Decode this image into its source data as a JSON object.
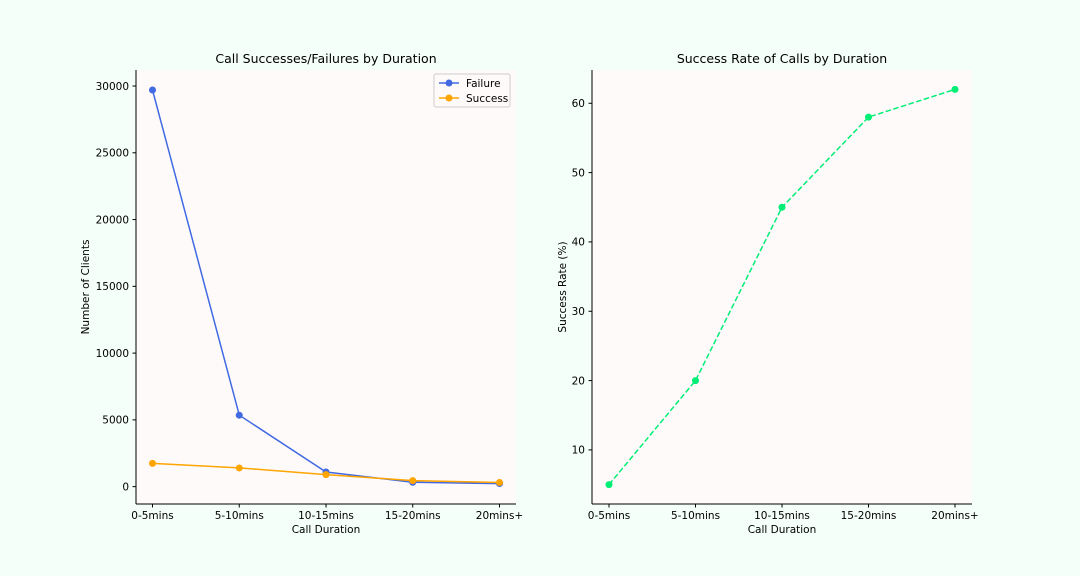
{
  "page": {
    "background": "#f5fff9"
  },
  "chart_data": [
    {
      "type": "line",
      "title": "Call Successes/Failures by Duration",
      "xlabel": "Call Duration",
      "ylabel": "Number of Clients",
      "categories": [
        "0-5mins",
        "5-10mins",
        "10-15mins",
        "15-20mins",
        "20mins+"
      ],
      "series": [
        {
          "name": "Failure",
          "values": [
            29700,
            5350,
            1100,
            330,
            230
          ],
          "color": "#4169e1",
          "line_style": "solid",
          "marker": "circle"
        },
        {
          "name": "Success",
          "values": [
            1740,
            1400,
            900,
            450,
            310
          ],
          "color": "#ffa500",
          "line_style": "solid",
          "marker": "circle"
        }
      ],
      "ylim": [
        -1300,
        31200
      ],
      "yticks": [
        0,
        5000,
        10000,
        15000,
        20000,
        25000,
        30000
      ],
      "legend_position": "top-right",
      "grid": false,
      "plot_background": "#fffafa"
    },
    {
      "type": "line",
      "title": "Success Rate of Calls by Duration",
      "xlabel": "Call Duration",
      "ylabel": "Success Rate (%)",
      "categories": [
        "0-5mins",
        "5-10mins",
        "10-15mins",
        "15-20mins",
        "20mins+"
      ],
      "series": [
        {
          "values": [
            5,
            20,
            45,
            58,
            62
          ],
          "color": "#00ee76",
          "line_style": "dashed",
          "marker": "circle"
        }
      ],
      "ylim": [
        2.2,
        64.8
      ],
      "yticks": [
        10,
        20,
        30,
        40,
        50,
        60
      ],
      "grid": false,
      "plot_background": "#fffafa"
    }
  ]
}
